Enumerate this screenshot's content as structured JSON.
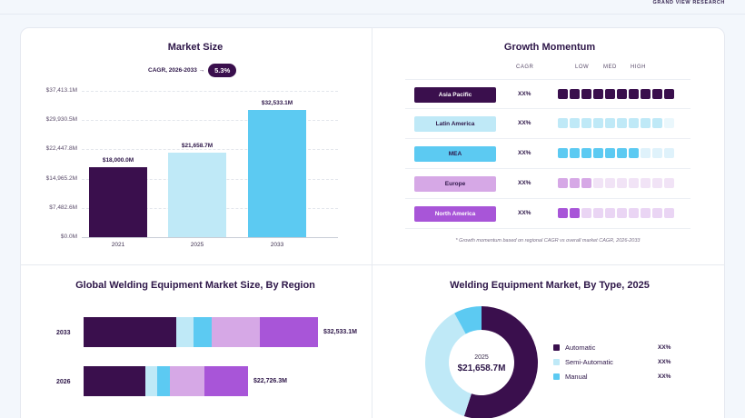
{
  "brand": "GRAND VIEW RESEARCH",
  "colors": {
    "dark_purple": "#3a0f4d",
    "light_blue": "#bfe9f7",
    "sky_blue": "#5ccaf2",
    "lavender": "#d6a8e6",
    "violet": "#a855d8"
  },
  "market_size": {
    "title": "Market Size",
    "cagr_label": "CAGR, 2026-2033 →",
    "cagr_value": "5.3%"
  },
  "growth_momentum": {
    "title": "Growth Momentum",
    "headers": {
      "cagr": "CAGR",
      "low": "LOW",
      "med": "MED",
      "high": "HIGH"
    },
    "rows": [
      {
        "region": "Asia Pacific",
        "cagr": "XX%",
        "level": 10,
        "color": "#3a0f4d",
        "light": "#3a0f4d",
        "text_color": "#ffffff"
      },
      {
        "region": "Latin America",
        "cagr": "XX%",
        "level": 9,
        "color": "#bfe9f7",
        "light": "#eaf7fc",
        "text_color": "#2d1648"
      },
      {
        "region": "MEA",
        "cagr": "XX%",
        "level": 7,
        "color": "#5ccaf2",
        "light": "#dff2fb",
        "text_color": "#2d1648"
      },
      {
        "region": "Europe",
        "cagr": "XX%",
        "level": 3,
        "color": "#d6a8e6",
        "light": "#f1e3f6",
        "text_color": "#2d1648"
      },
      {
        "region": "North America",
        "cagr": "XX%",
        "level": 2,
        "color": "#a855d8",
        "light": "#ead5f4",
        "text_color": "#ffffff"
      }
    ],
    "note": "* Growth momentum based on regional CAGR vs overall market CAGR, 2026-2033"
  },
  "region_chart": {
    "title": "Global Welding Equipment Market Size, By Region",
    "rows": [
      {
        "year": "2033",
        "total": "$32,533.1M",
        "segments": [
          102,
          19,
          20,
          53,
          64
        ]
      },
      {
        "year": "2026",
        "total": "$22,726.3M",
        "segments": [
          68,
          13,
          14,
          38,
          48
        ]
      }
    ],
    "segment_colors": [
      "#3a0f4d",
      "#bfe9f7",
      "#5ccaf2",
      "#d6a8e6",
      "#a855d8"
    ]
  },
  "type_chart": {
    "title": "Welding Equipment Market, By Type, 2025",
    "center_year": "2025",
    "center_value": "$21,658.7M",
    "slices": [
      {
        "name": "Automatic",
        "value": "XX%",
        "share": 0.55,
        "color": "#3a0f4d"
      },
      {
        "name": "Semi-Automatic",
        "value": "XX%",
        "share": 0.37,
        "color": "#bfe9f7"
      },
      {
        "name": "Manual",
        "value": "XX%",
        "share": 0.08,
        "color": "#5ccaf2"
      }
    ]
  },
  "chart_data": [
    {
      "type": "bar",
      "title": "Market Size",
      "categories": [
        "2021",
        "2025",
        "2033"
      ],
      "values": [
        18000.0,
        21658.7,
        32533.1
      ],
      "value_labels": [
        "$18,000.0M",
        "$21,658.7M",
        "$32,533.1M"
      ],
      "yticks": [
        "$0.0M",
        "$7,482.6M",
        "$14,965.2M",
        "$22,447.8M",
        "$29,930.5M",
        "$37,413.1M"
      ],
      "ylim": [
        0,
        37413.1
      ],
      "colors": [
        "#3a0f4d",
        "#bfe9f7",
        "#5ccaf2"
      ],
      "grid": true
    },
    {
      "type": "bar",
      "title": "Global Welding Equipment Market Size, By Region",
      "categories": [
        "2033",
        "2026"
      ],
      "values": [
        32533.1,
        22726.3
      ]
    },
    {
      "type": "pie",
      "title": "Welding Equipment Market, By Type, 2025",
      "labels": [
        "Automatic",
        "Semi-Automatic",
        "Manual"
      ],
      "values": [
        55,
        37,
        8
      ]
    }
  ]
}
